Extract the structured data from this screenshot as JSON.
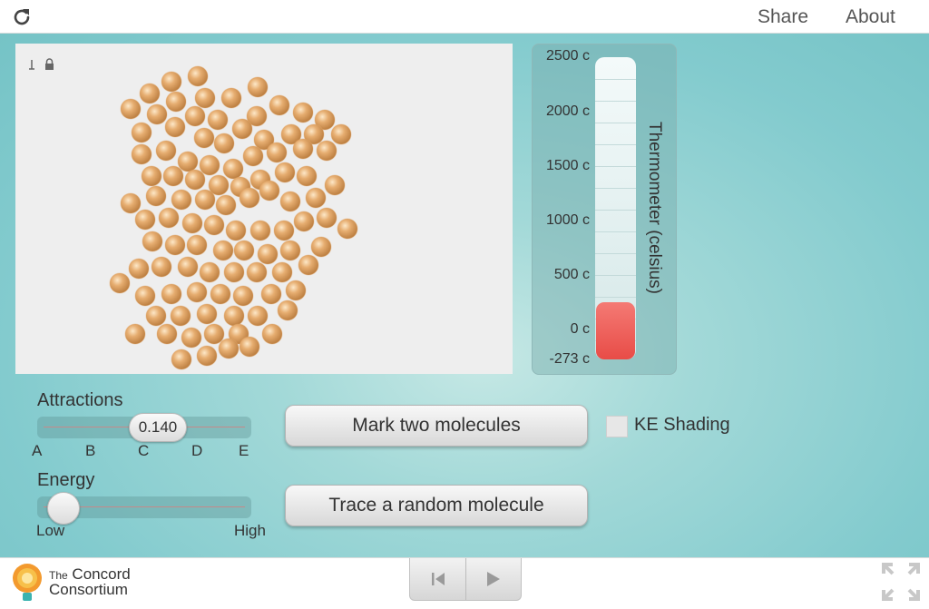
{
  "header": {
    "share_label": "Share",
    "about_label": "About",
    "reload_icon": "reload-icon"
  },
  "simulation": {
    "molecule_color": "#e0a466",
    "lock_icon": "lock-icon",
    "pin_icon": "pin-icon"
  },
  "thermometer": {
    "title": "Thermometer (celsius)",
    "labels": [
      "2500 c",
      "2000 c",
      "1500 c",
      "1000 c",
      "500 c",
      "0 c",
      "-273 c"
    ],
    "reading_celsius": 0,
    "fill_color": "#e84c47"
  },
  "attractions": {
    "label": "Attractions",
    "value": "0.140",
    "ticks": [
      "A",
      "B",
      "C",
      "D",
      "E"
    ]
  },
  "energy": {
    "label": "Energy",
    "min_label": "Low",
    "max_label": "High",
    "level": 0.0
  },
  "buttons": {
    "mark_two": "Mark two molecules",
    "trace_random": "Trace a random molecule"
  },
  "ke_shading": {
    "label": "KE Shading",
    "checked": false
  },
  "footer": {
    "logo_line1": "The Concord",
    "logo_line2": "Consortium",
    "logo_small": "The",
    "reset_icon": "reset-icon",
    "play_icon": "play-icon",
    "fullscreen_icon": "fullscreen-icon"
  },
  "colors": {
    "background_teal": "#83cbce",
    "thermo_red": "#e84c47"
  }
}
